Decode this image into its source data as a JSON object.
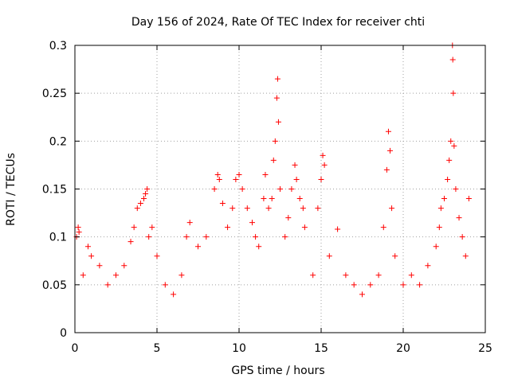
{
  "chart_data": {
    "type": "scatter",
    "title": "Day 156 of 2024, Rate Of TEC Index for receiver chti",
    "xlabel": "GPS time / hours",
    "ylabel": "ROTI / TECUs",
    "xlim": [
      0,
      25
    ],
    "ylim": [
      0,
      0.3
    ],
    "x_ticks": [
      "0",
      "5",
      "10",
      "15",
      "20",
      "25"
    ],
    "y_ticks": [
      "0",
      "0.05",
      "0.1",
      "0.15",
      "0.2",
      "0.25",
      "0.3"
    ],
    "grid": true,
    "marker": "plus",
    "color": "#ff0000",
    "points": [
      [
        0.1,
        0.1
      ],
      [
        0.2,
        0.11
      ],
      [
        0.25,
        0.105
      ],
      [
        0.5,
        0.06
      ],
      [
        0.8,
        0.09
      ],
      [
        1.0,
        0.08
      ],
      [
        1.5,
        0.07
      ],
      [
        2.0,
        0.05
      ],
      [
        2.5,
        0.06
      ],
      [
        3.0,
        0.07
      ],
      [
        3.4,
        0.095
      ],
      [
        3.6,
        0.11
      ],
      [
        3.8,
        0.13
      ],
      [
        4.0,
        0.135
      ],
      [
        4.2,
        0.14
      ],
      [
        4.3,
        0.145
      ],
      [
        4.4,
        0.15
      ],
      [
        4.5,
        0.1
      ],
      [
        4.7,
        0.11
      ],
      [
        5.0,
        0.08
      ],
      [
        5.5,
        0.05
      ],
      [
        6.0,
        0.04
      ],
      [
        6.5,
        0.06
      ],
      [
        6.8,
        0.1
      ],
      [
        7.0,
        0.115
      ],
      [
        7.5,
        0.09
      ],
      [
        8.0,
        0.1
      ],
      [
        8.5,
        0.15
      ],
      [
        8.7,
        0.165
      ],
      [
        8.8,
        0.16
      ],
      [
        9.0,
        0.135
      ],
      [
        9.3,
        0.11
      ],
      [
        9.6,
        0.13
      ],
      [
        9.8,
        0.16
      ],
      [
        10.0,
        0.165
      ],
      [
        10.2,
        0.15
      ],
      [
        10.5,
        0.13
      ],
      [
        10.8,
        0.115
      ],
      [
        11.0,
        0.1
      ],
      [
        11.2,
        0.09
      ],
      [
        11.5,
        0.14
      ],
      [
        11.6,
        0.165
      ],
      [
        11.8,
        0.13
      ],
      [
        12.0,
        0.14
      ],
      [
        12.1,
        0.18
      ],
      [
        12.2,
        0.2
      ],
      [
        12.3,
        0.245
      ],
      [
        12.35,
        0.265
      ],
      [
        12.4,
        0.22
      ],
      [
        12.5,
        0.15
      ],
      [
        12.8,
        0.1
      ],
      [
        13.0,
        0.12
      ],
      [
        13.2,
        0.15
      ],
      [
        13.4,
        0.175
      ],
      [
        13.5,
        0.16
      ],
      [
        13.7,
        0.14
      ],
      [
        13.9,
        0.13
      ],
      [
        14.0,
        0.11
      ],
      [
        14.5,
        0.06
      ],
      [
        14.8,
        0.13
      ],
      [
        15.0,
        0.16
      ],
      [
        15.1,
        0.185
      ],
      [
        15.2,
        0.175
      ],
      [
        15.5,
        0.08
      ],
      [
        16.0,
        0.108
      ],
      [
        16.5,
        0.06
      ],
      [
        17.0,
        0.05
      ],
      [
        17.5,
        0.04
      ],
      [
        18.0,
        0.05
      ],
      [
        18.5,
        0.06
      ],
      [
        18.8,
        0.11
      ],
      [
        19.0,
        0.17
      ],
      [
        19.1,
        0.21
      ],
      [
        19.2,
        0.19
      ],
      [
        19.3,
        0.13
      ],
      [
        19.5,
        0.08
      ],
      [
        20.0,
        0.05
      ],
      [
        20.5,
        0.06
      ],
      [
        21.0,
        0.05
      ],
      [
        21.5,
        0.07
      ],
      [
        22.0,
        0.09
      ],
      [
        22.2,
        0.11
      ],
      [
        22.3,
        0.13
      ],
      [
        22.5,
        0.14
      ],
      [
        22.7,
        0.16
      ],
      [
        22.8,
        0.18
      ],
      [
        22.9,
        0.2
      ],
      [
        23.0,
        0.3
      ],
      [
        23.02,
        0.285
      ],
      [
        23.05,
        0.25
      ],
      [
        23.1,
        0.195
      ],
      [
        23.2,
        0.15
      ],
      [
        23.4,
        0.12
      ],
      [
        23.6,
        0.1
      ],
      [
        23.8,
        0.08
      ],
      [
        24.0,
        0.14
      ]
    ]
  }
}
